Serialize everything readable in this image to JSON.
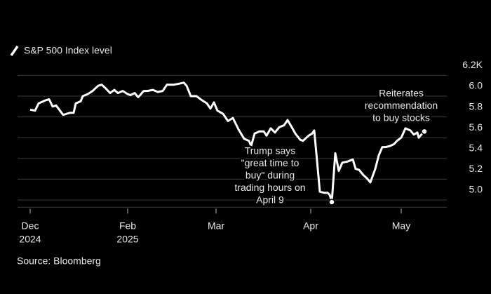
{
  "chart_data": {
    "type": "line",
    "series": [
      {
        "name": "S&P 500 Index level",
        "color": "#ffffff",
        "values": [
          5.87,
          5.86,
          5.93,
          5.96,
          5.97,
          5.9,
          5.91,
          5.82,
          5.84,
          5.84,
          5.93,
          5.95,
          6.0,
          6.02,
          6.05,
          6.1,
          6.11,
          6.08,
          6.03,
          6.06,
          6.03,
          6.05,
          6.02,
          6.01,
          6.03,
          5.99,
          6.05,
          6.05,
          6.06,
          6.04,
          6.05,
          6.11,
          6.11,
          6.12,
          6.13,
          6.1,
          6.0,
          6.0,
          5.96,
          5.93,
          5.88,
          5.94,
          5.86,
          5.83,
          5.76,
          5.79,
          5.68,
          5.59,
          5.57,
          5.52,
          5.64,
          5.66,
          5.66,
          5.62,
          5.69,
          5.65,
          5.7,
          5.72,
          5.77,
          5.7,
          5.64,
          5.58,
          5.57,
          5.62,
          5.64,
          5.67,
          5.45,
          5.08,
          5.07,
          5.07,
          5.05,
          4.98,
          5.45,
          5.28,
          5.36,
          5.37,
          5.39,
          5.3,
          5.29,
          5.24,
          5.21,
          5.17,
          5.3,
          5.43,
          5.51,
          5.51,
          5.52,
          5.54,
          5.57,
          5.6,
          5.69,
          5.67,
          5.63,
          5.65,
          5.6,
          5.64,
          5.66
        ]
      }
    ],
    "x": [
      0,
      7,
      12,
      22,
      27,
      32,
      37,
      47,
      57,
      62,
      65,
      72,
      75,
      82,
      89,
      97,
      102,
      107,
      114,
      120,
      125,
      132,
      139,
      143,
      149,
      154,
      162,
      167,
      175,
      182,
      189,
      195,
      205,
      212,
      219,
      223,
      229,
      237,
      245,
      252,
      257,
      262,
      267,
      275,
      282,
      289,
      297,
      305,
      312,
      315,
      320,
      327,
      333,
      337,
      343,
      349,
      355,
      362,
      367,
      373,
      378,
      385,
      389,
      397,
      402,
      405,
      408,
      413,
      419,
      424,
      427,
      430,
      435,
      440,
      445,
      452,
      460,
      464,
      469,
      475,
      480,
      485,
      492,
      497,
      502,
      507,
      513,
      519,
      523,
      529,
      535,
      542,
      547,
      552,
      554,
      559,
      562
    ],
    "xlim": [
      -18,
      594
    ],
    "xticks": [
      {
        "value": 0,
        "label": "Dec",
        "year": "2024"
      },
      {
        "value": 139,
        "label": "Feb",
        "year": "2025"
      },
      {
        "value": 265,
        "label": "Mar"
      },
      {
        "value": 400,
        "label": "Apr"
      },
      {
        "value": 529,
        "label": "May"
      }
    ],
    "ylim": [
      4.93,
      6.24
    ],
    "yticks": [
      {
        "value": 5,
        "label": "5.0"
      },
      5.2,
      5.4,
      5.6,
      5.8,
      {
        "value": 6,
        "label": "6.0"
      },
      {
        "value": 6.2,
        "label": "6.2K"
      }
    ],
    "grid": true,
    "annotations": [
      {
        "point": 71,
        "lines": [
          "Trump says",
          "\"great time to",
          "buy\" during",
          "trading hours on",
          "April 9"
        ]
      },
      {
        "point": 96,
        "lines": [
          "Reiterates",
          "recommendation",
          "to buy stocks"
        ]
      }
    ],
    "source": "Source: Bloomberg"
  }
}
